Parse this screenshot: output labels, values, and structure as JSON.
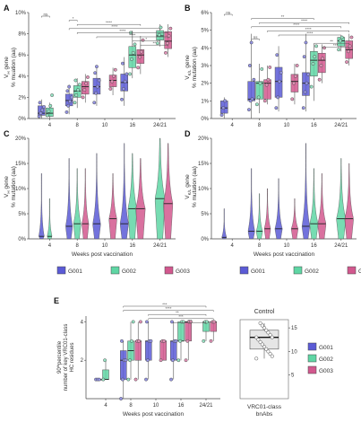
{
  "colors": {
    "G001": "#5b5bd6",
    "G002": "#5fd6a4",
    "G003": "#d2588e"
  },
  "weeks": [
    "4",
    "8",
    "10",
    "16",
    "24/21"
  ],
  "xlabel": "Weeks post vaccination",
  "legend": [
    "G001",
    "G002",
    "G003"
  ],
  "chart_data": [
    {
      "panel": "A",
      "type": "box",
      "ylabel": [
        "V",
        "H",
        " gene",
        "% muation (aa)"
      ],
      "ylim": [
        0,
        10
      ],
      "yticks": [
        "0%",
        "2%",
        "4%",
        "6%",
        "8%",
        "10%"
      ],
      "ytick_values": [
        0,
        2,
        4,
        6,
        8,
        10
      ],
      "sig_labels": [
        "ns",
        "*",
        "****",
        "****",
        "****",
        "****",
        "*",
        "**"
      ],
      "boxes": [
        {
          "week": "4",
          "group": "G001",
          "q1": 0.3,
          "med": 0.5,
          "q3": 1.2,
          "lo": 0,
          "hi": 1.8
        },
        {
          "week": "4",
          "group": "G002",
          "q1": 0.2,
          "med": 0.5,
          "q3": 1.0,
          "lo": 0,
          "hi": 1.5
        },
        {
          "week": "8",
          "group": "G001",
          "q1": 1.2,
          "med": 1.7,
          "q3": 2.3,
          "lo": 0.4,
          "hi": 3.2
        },
        {
          "week": "8",
          "group": "G002",
          "q1": 2.0,
          "med": 2.6,
          "q3": 3.1,
          "lo": 1.0,
          "hi": 3.8
        },
        {
          "week": "8",
          "group": "G003",
          "q1": 2.3,
          "med": 3.0,
          "q3": 3.5,
          "lo": 1.5,
          "hi": 4.2
        },
        {
          "week": "10",
          "group": "G001",
          "q1": 2.3,
          "med": 3.0,
          "q3": 3.8,
          "lo": 1.2,
          "hi": 5.0
        },
        {
          "week": "10",
          "group": "G003",
          "q1": 3.0,
          "med": 3.6,
          "q3": 4.1,
          "lo": 2.2,
          "hi": 4.8
        },
        {
          "week": "16",
          "group": "G001",
          "q1": 2.6,
          "med": 3.4,
          "q3": 4.2,
          "lo": 1.2,
          "hi": 5.8
        },
        {
          "week": "16",
          "group": "G002",
          "q1": 4.8,
          "med": 6.0,
          "q3": 6.8,
          "lo": 3.8,
          "hi": 8.3
        },
        {
          "week": "16",
          "group": "G003",
          "q1": 5.2,
          "med": 6.0,
          "q3": 6.5,
          "lo": 4.2,
          "hi": 7.8
        },
        {
          "week": "24/21",
          "group": "G002",
          "q1": 7.4,
          "med": 7.8,
          "q3": 8.3,
          "lo": 6.8,
          "hi": 8.9
        },
        {
          "week": "24/21",
          "group": "G003",
          "q1": 6.6,
          "med": 7.3,
          "q3": 8.2,
          "lo": 5.8,
          "hi": 8.9
        }
      ],
      "points": [
        {
          "week": "4",
          "group": "G001",
          "y": [
            0.2,
            0.5,
            0.8,
            1.1,
            1.5
          ]
        },
        {
          "week": "4",
          "group": "G002",
          "y": [
            0.3,
            0.7,
            1.2,
            2.2
          ]
        },
        {
          "week": "8",
          "group": "G001",
          "y": [
            0.6,
            1.2,
            1.6,
            2.0,
            2.6,
            3.0
          ]
        },
        {
          "week": "8",
          "group": "G002",
          "y": [
            1.5,
            2.2,
            2.7,
            3.2,
            3.6
          ]
        },
        {
          "week": "8",
          "group": "G003",
          "y": [
            2.0,
            2.7,
            3.3,
            3.9
          ]
        },
        {
          "week": "10",
          "group": "G001",
          "y": [
            1.5,
            2.4,
            3.0,
            3.6,
            4.3,
            4.9
          ]
        },
        {
          "week": "10",
          "group": "G003",
          "y": [
            2.8,
            3.5,
            4.0,
            4.6
          ]
        },
        {
          "week": "16",
          "group": "G001",
          "y": [
            1.8,
            2.8,
            3.5,
            4.2,
            5.2
          ]
        },
        {
          "week": "16",
          "group": "G002",
          "y": [
            4.2,
            5.6,
            6.2,
            7.0,
            8.1
          ]
        },
        {
          "week": "16",
          "group": "G003",
          "y": [
            4.8,
            5.8,
            6.3,
            7.4
          ]
        },
        {
          "week": "24/21",
          "group": "G002",
          "y": [
            7.1,
            7.9,
            8.6
          ]
        },
        {
          "week": "24/21",
          "group": "G003",
          "y": [
            6.2,
            7.1,
            7.8,
            8.5
          ]
        }
      ]
    },
    {
      "panel": "B",
      "type": "box",
      "ylabel": [
        "V",
        "K/L",
        " gene",
        "% mutation (aa)"
      ],
      "ylim": [
        0,
        6
      ],
      "yticks": [
        "0%",
        "1%",
        "2%",
        "3%",
        "4%",
        "5%",
        "6%"
      ],
      "ytick_values": [
        0,
        1,
        2,
        3,
        4,
        5,
        6
      ],
      "sig_labels": [
        "ns",
        "**",
        "****",
        "****",
        "****",
        "****",
        "ns",
        "**",
        "***"
      ],
      "boxes": [
        {
          "week": "4",
          "group": "G001",
          "q1": 0.3,
          "med": 0.6,
          "q3": 1.0,
          "lo": 0,
          "hi": 1.2
        },
        {
          "week": "8",
          "group": "G001",
          "q1": 1.0,
          "med": 1.1,
          "q3": 2.1,
          "lo": 0,
          "hi": 4.8
        },
        {
          "week": "8",
          "group": "G002",
          "q1": 1.1,
          "med": 2.0,
          "q3": 2.1,
          "lo": 0.3,
          "hi": 3.1
        },
        {
          "week": "8",
          "group": "G003",
          "q1": 1.1,
          "med": 2.0,
          "q3": 2.2,
          "lo": 0.8,
          "hi": 3.0
        },
        {
          "week": "10",
          "group": "G001",
          "q1": 1.2,
          "med": 2.1,
          "q3": 2.9,
          "lo": 0.4,
          "hi": 4.1
        },
        {
          "week": "10",
          "group": "G003",
          "q1": 1.5,
          "med": 2.1,
          "q3": 2.5,
          "lo": 0.8,
          "hi": 3.1
        },
        {
          "week": "16",
          "group": "G001",
          "q1": 1.3,
          "med": 2.0,
          "q3": 2.6,
          "lo": 0.4,
          "hi": 4.8
        },
        {
          "week": "16",
          "group": "G002",
          "q1": 2.4,
          "med": 3.3,
          "q3": 3.8,
          "lo": 1.0,
          "hi": 4.2
        },
        {
          "week": "16",
          "group": "G003",
          "q1": 2.6,
          "med": 3.3,
          "q3": 3.7,
          "lo": 2.0,
          "hi": 4.2
        },
        {
          "week": "24/21",
          "group": "G002",
          "q1": 4.1,
          "med": 4.4,
          "q3": 4.6,
          "lo": 3.8,
          "hi": 4.7
        },
        {
          "week": "24/21",
          "group": "G003",
          "q1": 3.4,
          "med": 3.9,
          "q3": 4.4,
          "lo": 3.0,
          "hi": 4.8
        }
      ],
      "points": [
        {
          "week": "4",
          "group": "G001",
          "y": [
            0.2,
            0.6,
            1.0
          ]
        },
        {
          "week": "8",
          "group": "G001",
          "y": [
            0.5,
            1.0,
            1.1,
            2.2,
            3.0,
            4.3
          ]
        },
        {
          "week": "8",
          "group": "G002",
          "y": [
            0.8,
            1.2,
            2.0,
            2.8
          ]
        },
        {
          "week": "8",
          "group": "G003",
          "y": [
            1.0,
            1.9,
            2.2,
            2.9
          ]
        },
        {
          "week": "10",
          "group": "G001",
          "y": [
            0.6,
            1.2,
            2.1,
            2.6,
            3.6
          ]
        },
        {
          "week": "10",
          "group": "G003",
          "y": [
            1.1,
            2.0,
            2.4,
            3.0
          ]
        },
        {
          "week": "16",
          "group": "G001",
          "y": [
            0.6,
            1.5,
            2.0,
            2.5,
            3.5,
            4.3
          ]
        },
        {
          "week": "16",
          "group": "G002",
          "y": [
            1.8,
            3.1,
            3.5,
            4.1
          ]
        },
        {
          "week": "16",
          "group": "G003",
          "y": [
            2.2,
            3.0,
            3.4,
            4.0
          ]
        },
        {
          "week": "24/21",
          "group": "G002",
          "y": [
            3.9,
            4.4,
            4.6
          ]
        },
        {
          "week": "24/21",
          "group": "G003",
          "y": [
            3.2,
            3.8,
            4.1,
            4.6
          ]
        }
      ]
    },
    {
      "panel": "C",
      "type": "violin",
      "ylabel": [
        "V",
        "H",
        " gene",
        "% mutation (aa)"
      ],
      "ylim": [
        0,
        20
      ],
      "yticks": [
        "0%",
        "5%",
        "10%",
        "15%",
        "20%"
      ],
      "ytick_values": [
        0,
        5,
        10,
        15,
        20
      ],
      "violins": [
        {
          "week": "4",
          "group": "G001",
          "top": 13,
          "med": 0.5,
          "w": 0.55
        },
        {
          "week": "4",
          "group": "G002",
          "top": 8,
          "med": 0.5,
          "w": 0.5
        },
        {
          "week": "8",
          "group": "G001",
          "top": 16,
          "med": 2.5,
          "w": 0.7
        },
        {
          "week": "8",
          "group": "G002",
          "top": 14,
          "med": 3.0,
          "w": 0.75
        },
        {
          "week": "8",
          "group": "G003",
          "top": 14,
          "med": 3.0,
          "w": 0.7
        },
        {
          "week": "10",
          "group": "G001",
          "top": 17,
          "med": 3.0,
          "w": 0.8
        },
        {
          "week": "10",
          "group": "G003",
          "top": 13,
          "med": 4.0,
          "w": 0.8
        },
        {
          "week": "16",
          "group": "G001",
          "top": 19,
          "med": 3.0,
          "w": 0.85
        },
        {
          "week": "16",
          "group": "G002",
          "top": 17,
          "med": 6.0,
          "w": 0.9
        },
        {
          "week": "16",
          "group": "G003",
          "top": 16,
          "med": 6.0,
          "w": 0.95
        },
        {
          "week": "24/21",
          "group": "G002",
          "top": 20,
          "med": 8.0,
          "w": 1.0
        },
        {
          "week": "24/21",
          "group": "G003",
          "top": 19,
          "med": 7.0,
          "w": 0.95
        }
      ]
    },
    {
      "panel": "D",
      "type": "violin",
      "ylabel": [
        "V",
        "K/L",
        " gene",
        "% mutation (aa)"
      ],
      "ylim": [
        0,
        20
      ],
      "yticks": [
        "0%",
        "5%",
        "10%",
        "15%",
        "20%"
      ],
      "ytick_values": [
        0,
        5,
        10,
        15,
        20
      ],
      "violins": [
        {
          "week": "4",
          "group": "G001",
          "top": 6,
          "med": 0.3,
          "w": 0.5
        },
        {
          "week": "8",
          "group": "G001",
          "top": 14,
          "med": 1.5,
          "w": 0.7
        },
        {
          "week": "8",
          "group": "G002",
          "top": 9,
          "med": 1.5,
          "w": 0.65
        },
        {
          "week": "8",
          "group": "G003",
          "top": 10,
          "med": 2.0,
          "w": 0.65
        },
        {
          "week": "10",
          "group": "G001",
          "top": 12,
          "med": 2.0,
          "w": 0.75
        },
        {
          "week": "10",
          "group": "G003",
          "top": 8,
          "med": 2.0,
          "w": 0.7
        },
        {
          "week": "16",
          "group": "G001",
          "top": 19,
          "med": 2.5,
          "w": 0.8
        },
        {
          "week": "16",
          "group": "G002",
          "top": 14,
          "med": 3.0,
          "w": 0.85
        },
        {
          "week": "16",
          "group": "G003",
          "top": 13,
          "med": 3.0,
          "w": 0.85
        },
        {
          "week": "24/21",
          "group": "G002",
          "top": 16,
          "med": 4.0,
          "w": 0.95
        },
        {
          "week": "24/21",
          "group": "G003",
          "top": 15,
          "med": 4.0,
          "w": 0.9
        }
      ]
    },
    {
      "panel": "E",
      "type": "box",
      "ylabel": [
        "90",
        "th",
        "percentile",
        "number of key VRC01-class",
        "HC residues"
      ],
      "ylim": [
        0,
        4.3
      ],
      "yticks": [
        "2",
        "4"
      ],
      "ytick_values": [
        2,
        4
      ],
      "sig_labels": [
        "***",
        "****",
        "**",
        "***",
        "***"
      ],
      "boxes": [
        {
          "week": "4",
          "group": "G001",
          "q1": 1.0,
          "med": 1.0,
          "q3": 1.0,
          "lo": 1.0,
          "hi": 1.0
        },
        {
          "week": "4",
          "group": "G002",
          "q1": 1.0,
          "med": 1.0,
          "q3": 1.5,
          "lo": 1.0,
          "hi": 2.0
        },
        {
          "week": "8",
          "group": "G001",
          "q1": 1.0,
          "med": 2.0,
          "q3": 2.5,
          "lo": 0.0,
          "hi": 3.0
        },
        {
          "week": "8",
          "group": "G002",
          "q1": 2.0,
          "med": 2.5,
          "q3": 3.0,
          "lo": 1.0,
          "hi": 4.0
        },
        {
          "week": "8",
          "group": "G003",
          "q1": 2.0,
          "med": 3.0,
          "q3": 3.0,
          "lo": 1.0,
          "hi": 4.0
        },
        {
          "week": "10",
          "group": "G001",
          "q1": 2.0,
          "med": 3.0,
          "q3": 3.0,
          "lo": 1.0,
          "hi": 4.0
        },
        {
          "week": "10",
          "group": "G003",
          "q1": 2.0,
          "med": 3.0,
          "q3": 3.0,
          "lo": 2.0,
          "hi": 3.0
        },
        {
          "week": "16",
          "group": "G001",
          "q1": 2.0,
          "med": 3.0,
          "q3": 3.0,
          "lo": 1.0,
          "hi": 4.0
        },
        {
          "week": "16",
          "group": "G002",
          "q1": 3.0,
          "med": 3.0,
          "q3": 4.0,
          "lo": 2.0,
          "hi": 4.0
        },
        {
          "week": "16",
          "group": "G003",
          "q1": 3.0,
          "med": 4.0,
          "q3": 4.0,
          "lo": 2.0,
          "hi": 4.0
        },
        {
          "week": "24/21",
          "group": "G002",
          "q1": 3.5,
          "med": 4.0,
          "q3": 4.0,
          "lo": 3.0,
          "hi": 4.0
        },
        {
          "week": "24/21",
          "group": "G003",
          "q1": 3.5,
          "med": 4.0,
          "q3": 4.0,
          "lo": 3.0,
          "hi": 4.0
        }
      ],
      "points": [
        {
          "week": "4",
          "group": "G001",
          "y": [
            1,
            1,
            1
          ]
        },
        {
          "week": "4",
          "group": "G002",
          "y": [
            1,
            2
          ]
        },
        {
          "week": "8",
          "group": "G001",
          "y": [
            0,
            1,
            2,
            2,
            3
          ]
        },
        {
          "week": "8",
          "group": "G002",
          "y": [
            1,
            2,
            3,
            4
          ]
        },
        {
          "week": "8",
          "group": "G003",
          "y": [
            1,
            3,
            3,
            4
          ]
        },
        {
          "week": "10",
          "group": "G001",
          "y": [
            1,
            2,
            3,
            3,
            4
          ]
        },
        {
          "week": "10",
          "group": "G003",
          "y": [
            2,
            3,
            3
          ]
        },
        {
          "week": "16",
          "group": "G001",
          "y": [
            1,
            2,
            3,
            3,
            4
          ]
        },
        {
          "week": "16",
          "group": "G002",
          "y": [
            2,
            3,
            4,
            4
          ]
        },
        {
          "week": "16",
          "group": "G003",
          "y": [
            2,
            3,
            4,
            4
          ]
        },
        {
          "week": "24/21",
          "group": "G002",
          "y": [
            3,
            4,
            4
          ]
        },
        {
          "week": "24/21",
          "group": "G003",
          "y": [
            3,
            4,
            4
          ]
        }
      ]
    },
    {
      "panel": "E-control",
      "type": "box",
      "title": "Control",
      "category": [
        "VRC01-class",
        "bnAbs"
      ],
      "ylim": [
        0,
        17.5
      ],
      "yticks": [
        "5",
        "10",
        "15"
      ],
      "ytick_values": [
        5,
        10,
        15
      ],
      "box": {
        "q1": 10.5,
        "med": 13.0,
        "q3": 14.5,
        "lo": 8.5,
        "hi": 16.0
      },
      "points": [
        8.5,
        9,
        9.5,
        10,
        10.5,
        11,
        11.5,
        12,
        12.5,
        13,
        13,
        13.5,
        14,
        14.5,
        15,
        15.5,
        16
      ]
    }
  ]
}
